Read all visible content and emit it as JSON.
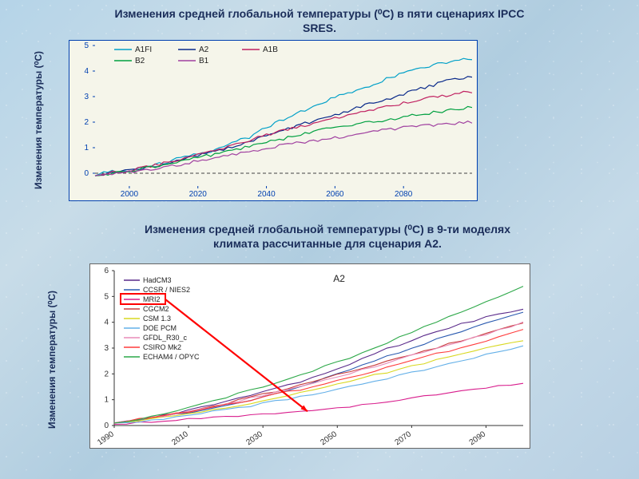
{
  "title1": "Изменения средней глобальной температуры (⁰C) в пяти сценариях IPCC SRES.",
  "title2": "Изменения средней глобальной температуры (⁰C) в 9-ти моделях климата рассчитанные для сценария A2.",
  "ylabel": "Изменения температуры (⁰С)",
  "title_color": "#1a2d5a",
  "title_fontsize": 14,
  "title_fontweight": "bold",
  "chart1": {
    "type": "line",
    "background_color": "#f5f5ea",
    "border_color": "#0040b0",
    "xlim": [
      1990,
      2100
    ],
    "ylim": [
      -0.5,
      5
    ],
    "xticks": [
      2000,
      2020,
      2040,
      2060,
      2080
    ],
    "yticks": [
      0,
      1,
      2,
      3,
      4,
      5
    ],
    "tick_color": "#0040b0",
    "tick_fontsize": 10,
    "zero_line": true,
    "zero_line_style": "dashed",
    "zero_line_color": "#444444",
    "legend_position": "top-left",
    "legend_fontsize": 10,
    "series": [
      {
        "name": "A1FI",
        "color": "#00a0c8",
        "line_width": 1.2,
        "x": [
          1990,
          1995,
          2000,
          2005,
          2010,
          2015,
          2020,
          2025,
          2030,
          2035,
          2040,
          2045,
          2050,
          2055,
          2060,
          2065,
          2070,
          2075,
          2080,
          2085,
          2090,
          2095,
          2100
        ],
        "y": [
          -0.1,
          0.1,
          0.05,
          0.3,
          0.4,
          0.6,
          0.8,
          0.9,
          1.2,
          1.4,
          1.8,
          2.1,
          2.4,
          2.7,
          3.0,
          3.2,
          3.4,
          3.7,
          3.9,
          4.1,
          4.3,
          4.4,
          4.5
        ]
      },
      {
        "name": "A2",
        "color": "#0a2a8a",
        "line_width": 1.2,
        "x": [
          1990,
          1995,
          2000,
          2005,
          2010,
          2015,
          2020,
          2025,
          2030,
          2035,
          2040,
          2045,
          2050,
          2055,
          2060,
          2065,
          2070,
          2075,
          2080,
          2085,
          2090,
          2095,
          2100
        ],
        "y": [
          -0.1,
          0.0,
          0.1,
          0.2,
          0.35,
          0.5,
          0.7,
          0.85,
          1.05,
          1.2,
          1.5,
          1.7,
          1.9,
          2.1,
          2.3,
          2.5,
          2.7,
          2.9,
          3.1,
          3.3,
          3.5,
          3.7,
          3.8
        ]
      },
      {
        "name": "A1B",
        "color": "#c02060",
        "line_width": 1.2,
        "x": [
          1990,
          1995,
          2000,
          2005,
          2010,
          2015,
          2020,
          2025,
          2030,
          2035,
          2040,
          2045,
          2050,
          2055,
          2060,
          2065,
          2070,
          2075,
          2080,
          2085,
          2090,
          2095,
          2100
        ],
        "y": [
          -0.1,
          0.05,
          0.1,
          0.25,
          0.4,
          0.55,
          0.75,
          0.9,
          1.1,
          1.3,
          1.5,
          1.7,
          1.85,
          2.0,
          2.15,
          2.3,
          2.45,
          2.6,
          2.75,
          2.9,
          3.0,
          3.1,
          3.2
        ]
      },
      {
        "name": "B2",
        "color": "#00a040",
        "line_width": 1.2,
        "x": [
          1990,
          1995,
          2000,
          2005,
          2010,
          2015,
          2020,
          2025,
          2030,
          2035,
          2040,
          2045,
          2050,
          2055,
          2060,
          2065,
          2070,
          2075,
          2080,
          2085,
          2090,
          2095,
          2100
        ],
        "y": [
          -0.1,
          0.0,
          0.1,
          0.2,
          0.3,
          0.45,
          0.6,
          0.75,
          0.9,
          1.05,
          1.2,
          1.35,
          1.5,
          1.65,
          1.8,
          1.9,
          2.0,
          2.1,
          2.2,
          2.3,
          2.4,
          2.5,
          2.6
        ]
      },
      {
        "name": "B1",
        "color": "#a040a0",
        "line_width": 1.2,
        "x": [
          1990,
          1995,
          2000,
          2005,
          2010,
          2015,
          2020,
          2025,
          2030,
          2035,
          2040,
          2045,
          2050,
          2055,
          2060,
          2065,
          2070,
          2075,
          2080,
          2085,
          2090,
          2095,
          2100
        ],
        "y": [
          -0.1,
          0.0,
          0.05,
          0.15,
          0.25,
          0.35,
          0.5,
          0.6,
          0.75,
          0.85,
          1.0,
          1.1,
          1.2,
          1.3,
          1.4,
          1.5,
          1.6,
          1.7,
          1.8,
          1.85,
          1.9,
          1.95,
          2.0
        ]
      }
    ]
  },
  "chart2": {
    "type": "line",
    "background_color": "#ffffff",
    "border_color": "#666666",
    "panel_label": "A2",
    "panel_label_fontsize": 12,
    "xlim": [
      1990,
      2100
    ],
    "ylim": [
      0,
      6
    ],
    "xticks": [
      1990,
      2010,
      2030,
      2050,
      2070,
      2090
    ],
    "yticks": [
      0,
      1,
      2,
      3,
      4,
      5,
      6
    ],
    "tick_color": "#333333",
    "tick_fontsize": 10,
    "xtick_rotation": -35,
    "legend_position": "left",
    "legend_fontsize": 9,
    "highlight_box_color": "#ff0000",
    "arrow_color": "#ff0000",
    "series": [
      {
        "name": "HadCM3",
        "color": "#5a2a8a",
        "line_width": 1.1,
        "x": [
          1990,
          2000,
          2010,
          2020,
          2030,
          2040,
          2050,
          2060,
          2070,
          2080,
          2090,
          2100
        ],
        "y": [
          0.1,
          0.3,
          0.6,
          0.9,
          1.3,
          1.7,
          2.2,
          2.8,
          3.3,
          3.8,
          4.2,
          4.5
        ]
      },
      {
        "name": "CCSR / NIES2",
        "color": "#2a5ab0",
        "line_width": 1.1,
        "x": [
          1990,
          2000,
          2010,
          2020,
          2030,
          2040,
          2050,
          2060,
          2070,
          2080,
          2090,
          2100
        ],
        "y": [
          0.1,
          0.25,
          0.5,
          0.8,
          1.1,
          1.5,
          2.0,
          2.5,
          3.0,
          3.5,
          4.0,
          4.4
        ]
      },
      {
        "name": "MRI2",
        "color": "#d81c8c",
        "line_width": 1.1,
        "highlighted": true,
        "x": [
          1990,
          2000,
          2010,
          2020,
          2030,
          2040,
          2050,
          2060,
          2070,
          2080,
          2090,
          2100
        ],
        "y": [
          0.05,
          0.15,
          0.25,
          0.35,
          0.45,
          0.55,
          0.7,
          0.85,
          1.05,
          1.25,
          1.45,
          1.65
        ]
      },
      {
        "name": "CGCM2",
        "color": "#c83c3c",
        "line_width": 1.1,
        "x": [
          1990,
          2000,
          2010,
          2020,
          2030,
          2040,
          2050,
          2060,
          2070,
          2080,
          2090,
          2100
        ],
        "y": [
          0.1,
          0.3,
          0.55,
          0.85,
          1.2,
          1.55,
          1.95,
          2.35,
          2.75,
          3.15,
          3.6,
          4.0
        ]
      },
      {
        "name": "CSM 1.3",
        "color": "#d8d820",
        "line_width": 1.1,
        "x": [
          1990,
          2000,
          2010,
          2020,
          2030,
          2040,
          2050,
          2060,
          2070,
          2080,
          2090,
          2100
        ],
        "y": [
          0.1,
          0.25,
          0.45,
          0.7,
          0.95,
          1.25,
          1.6,
          1.95,
          2.3,
          2.65,
          3.0,
          3.3
        ]
      },
      {
        "name": "DOE PCM",
        "color": "#64b0e8",
        "line_width": 1.1,
        "x": [
          1990,
          2000,
          2010,
          2020,
          2030,
          2040,
          2050,
          2060,
          2070,
          2080,
          2090,
          2100
        ],
        "y": [
          0.1,
          0.2,
          0.4,
          0.6,
          0.85,
          1.1,
          1.4,
          1.7,
          2.05,
          2.4,
          2.75,
          3.1
        ]
      },
      {
        "name": "GFDL_R30_c",
        "color": "#e88cb8",
        "line_width": 1.1,
        "x": [
          1990,
          2000,
          2010,
          2020,
          2030,
          2040,
          2050,
          2060,
          2070,
          2080,
          2090,
          2100
        ],
        "y": [
          0.1,
          0.3,
          0.55,
          0.85,
          1.15,
          1.5,
          1.9,
          2.3,
          2.7,
          3.1,
          3.55,
          4.0
        ]
      },
      {
        "name": "CSIRO Mk2",
        "color": "#ff3c3c",
        "line_width": 1.1,
        "x": [
          1990,
          2000,
          2010,
          2020,
          2030,
          2040,
          2050,
          2060,
          2070,
          2080,
          2090,
          2100
        ],
        "y": [
          0.1,
          0.3,
          0.55,
          0.8,
          1.1,
          1.4,
          1.75,
          2.1,
          2.5,
          2.9,
          3.3,
          3.7
        ]
      },
      {
        "name": "ECHAM4 / OPYC",
        "color": "#2ca848",
        "line_width": 1.1,
        "x": [
          1990,
          2000,
          2010,
          2020,
          2030,
          2040,
          2050,
          2060,
          2070,
          2080,
          2090,
          2100
        ],
        "y": [
          0.1,
          0.35,
          0.7,
          1.1,
          1.5,
          1.95,
          2.45,
          3.0,
          3.6,
          4.2,
          4.8,
          5.4
        ]
      }
    ]
  }
}
